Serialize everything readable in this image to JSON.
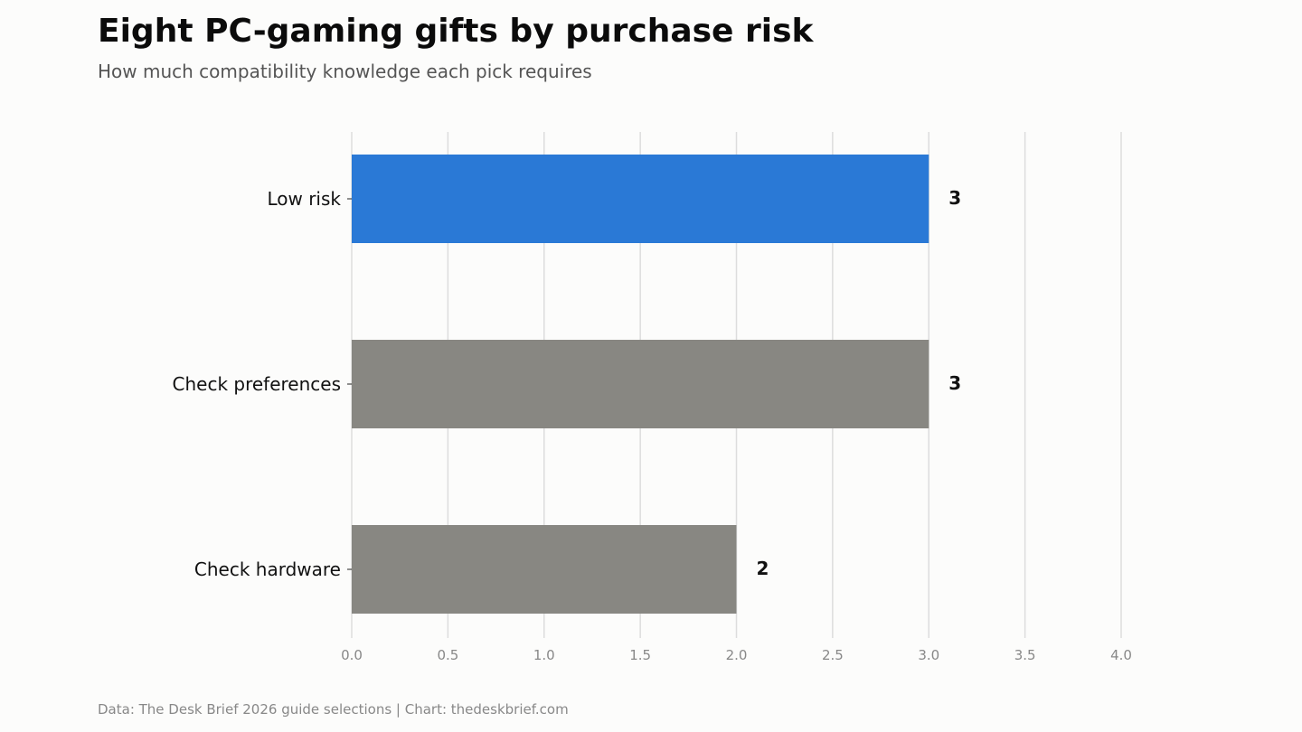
{
  "chart_data": {
    "type": "bar",
    "orientation": "horizontal",
    "title": "Eight PC-gaming gifts by purchase risk",
    "subtitle": "How much compatibility knowledge each pick requires",
    "footer": "Data: The Desk Brief 2026 guide selections | Chart: thedeskbrief.com",
    "categories": [
      "Low risk",
      "Check preferences",
      "Check hardware"
    ],
    "values": [
      3,
      3,
      2
    ],
    "value_labels": [
      "3",
      "3",
      "2"
    ],
    "xlim": [
      0,
      4
    ],
    "x_ticks": [
      "0.0",
      "0.5",
      "1.0",
      "1.5",
      "2.0",
      "2.5",
      "3.0",
      "3.5",
      "4.0"
    ],
    "xlabel": "",
    "ylabel": "",
    "grid": "vertical",
    "colors": {
      "highlight": "#2a79d6",
      "default": "#888782",
      "grid": "#dddddd",
      "background": "#fcfcfb"
    },
    "highlighted_category": "Low risk"
  }
}
